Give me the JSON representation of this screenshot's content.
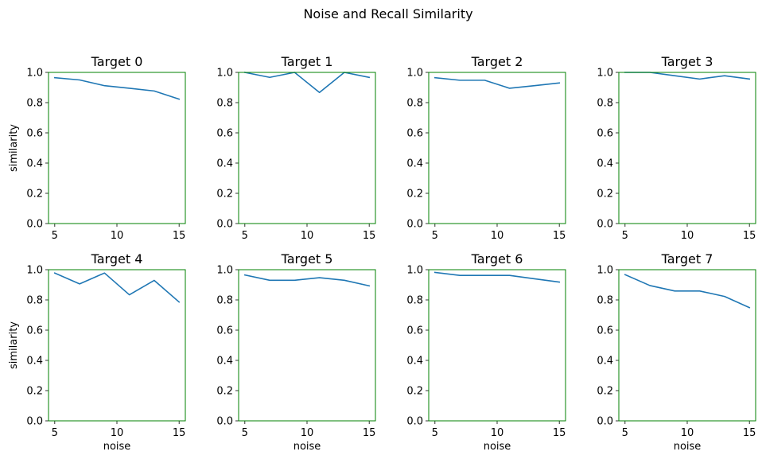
{
  "figure": {
    "title": "Noise and Recall Similarity",
    "spine_color": "#008000",
    "line_color": "#1f77b4"
  },
  "chart_data": [
    {
      "type": "line",
      "title": "Target 0",
      "xlabel": "",
      "ylabel": "similarity",
      "xticks": [
        5,
        10,
        15
      ],
      "yticks": [
        0.0,
        0.2,
        0.4,
        0.6,
        0.8,
        1.0
      ],
      "xlim": [
        4.5,
        15.5
      ],
      "ylim": [
        0,
        1
      ],
      "x": [
        5,
        7,
        9,
        11,
        13,
        15
      ],
      "y": [
        0.965,
        0.95,
        0.912,
        0.895,
        0.877,
        0.823
      ]
    },
    {
      "type": "line",
      "title": "Target 1",
      "xlabel": "",
      "ylabel": "",
      "xticks": [
        5,
        10,
        15
      ],
      "yticks": [
        0.0,
        0.2,
        0.4,
        0.6,
        0.8,
        1.0
      ],
      "xlim": [
        4.5,
        15.5
      ],
      "ylim": [
        0,
        1
      ],
      "x": [
        5,
        7,
        9,
        11,
        13,
        15
      ],
      "y": [
        1.0,
        0.967,
        1.0,
        0.867,
        1.0,
        0.967
      ]
    },
    {
      "type": "line",
      "title": "Target 2",
      "xlabel": "",
      "ylabel": "",
      "xticks": [
        5,
        10,
        15
      ],
      "yticks": [
        0.0,
        0.2,
        0.4,
        0.6,
        0.8,
        1.0
      ],
      "xlim": [
        4.5,
        15.5
      ],
      "ylim": [
        0,
        1
      ],
      "x": [
        5,
        7,
        9,
        11,
        13,
        15
      ],
      "y": [
        0.965,
        0.948,
        0.948,
        0.895,
        0.912,
        0.93
      ]
    },
    {
      "type": "line",
      "title": "Target 3",
      "xlabel": "",
      "ylabel": "",
      "xticks": [
        5,
        10,
        15
      ],
      "yticks": [
        0.0,
        0.2,
        0.4,
        0.6,
        0.8,
        1.0
      ],
      "xlim": [
        4.5,
        15.5
      ],
      "ylim": [
        0,
        1
      ],
      "x": [
        5,
        7,
        9,
        11,
        13,
        15
      ],
      "y": [
        1.0,
        1.0,
        0.978,
        0.956,
        0.978,
        0.956
      ]
    },
    {
      "type": "line",
      "title": "Target 4",
      "xlabel": "noise",
      "ylabel": "similarity",
      "xticks": [
        5,
        10,
        15
      ],
      "yticks": [
        0.0,
        0.2,
        0.4,
        0.6,
        0.8,
        1.0
      ],
      "xlim": [
        4.5,
        15.5
      ],
      "ylim": [
        0,
        1
      ],
      "x": [
        5,
        7,
        9,
        11,
        13,
        15
      ],
      "y": [
        0.978,
        0.906,
        0.978,
        0.834,
        0.929,
        0.786
      ]
    },
    {
      "type": "line",
      "title": "Target 5",
      "xlabel": "noise",
      "ylabel": "",
      "xticks": [
        5,
        10,
        15
      ],
      "yticks": [
        0.0,
        0.2,
        0.4,
        0.6,
        0.8,
        1.0
      ],
      "xlim": [
        4.5,
        15.5
      ],
      "ylim": [
        0,
        1
      ],
      "x": [
        5,
        7,
        9,
        11,
        13,
        15
      ],
      "y": [
        0.965,
        0.93,
        0.93,
        0.947,
        0.93,
        0.893
      ]
    },
    {
      "type": "line",
      "title": "Target 6",
      "xlabel": "noise",
      "ylabel": "",
      "xticks": [
        5,
        10,
        15
      ],
      "yticks": [
        0.0,
        0.2,
        0.4,
        0.6,
        0.8,
        1.0
      ],
      "xlim": [
        4.5,
        15.5
      ],
      "ylim": [
        0,
        1
      ],
      "x": [
        5,
        7,
        9,
        11,
        13,
        15
      ],
      "y": [
        0.982,
        0.962,
        0.962,
        0.962,
        0.94,
        0.918
      ]
    },
    {
      "type": "line",
      "title": "Target 7",
      "xlabel": "noise",
      "ylabel": "",
      "xticks": [
        5,
        10,
        15
      ],
      "yticks": [
        0.0,
        0.2,
        0.4,
        0.6,
        0.8,
        1.0
      ],
      "xlim": [
        4.5,
        15.5
      ],
      "ylim": [
        0,
        1
      ],
      "x": [
        5,
        7,
        9,
        11,
        13,
        15
      ],
      "y": [
        0.967,
        0.895,
        0.859,
        0.859,
        0.823,
        0.749
      ]
    }
  ]
}
